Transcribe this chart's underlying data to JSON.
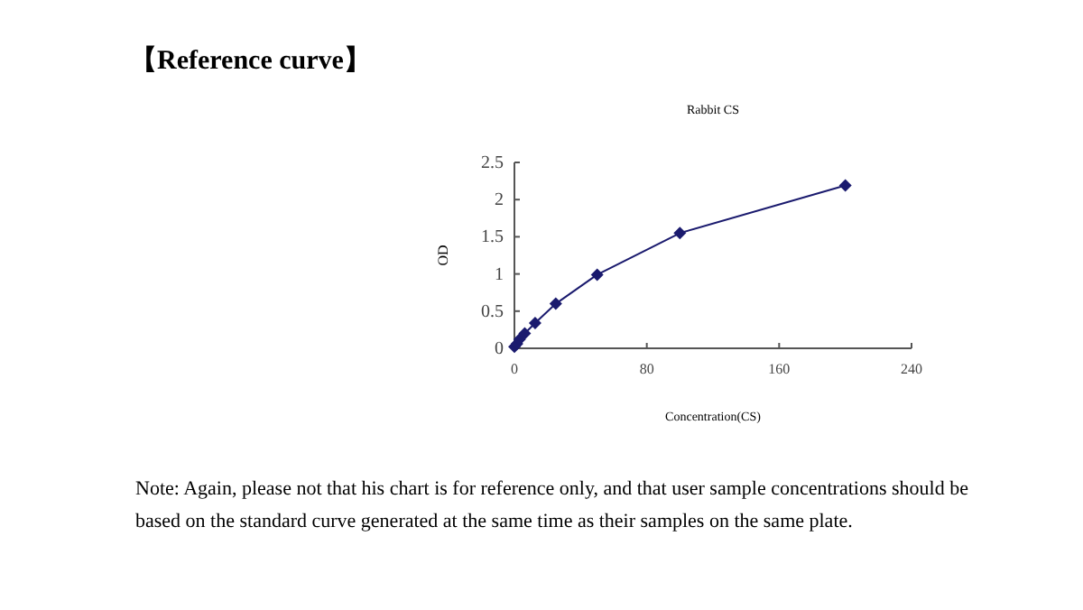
{
  "chart_data": {
    "type": "line",
    "title": "【Reference curve】",
    "subtitle": "Rabbit CS",
    "xlabel": "Concentration(CS)",
    "ylabel": "OD",
    "annotations": [
      "Note: Again, please not that his chart is for reference only, and that user sample concentrations should be based on the standard curve generated at the same time as their samples on the same plate."
    ],
    "x": [
      0,
      1.56,
      3.125,
      6.25,
      12.5,
      25,
      50,
      100,
      200
    ],
    "series": [
      {
        "color": "#1a1a6e",
        "values": [
          0.02,
          0.06,
          0.12,
          0.2,
          0.34,
          0.6,
          0.99,
          1.55,
          2.19
        ]
      }
    ],
    "xlim": [
      0,
      240
    ],
    "xticks": [
      0,
      80,
      160,
      240
    ],
    "ylim": [
      0,
      2.5
    ],
    "yticks": [
      0,
      0.5,
      1,
      1.5,
      2,
      2.5
    ],
    "marker": "diamond",
    "line_style": "solid"
  }
}
